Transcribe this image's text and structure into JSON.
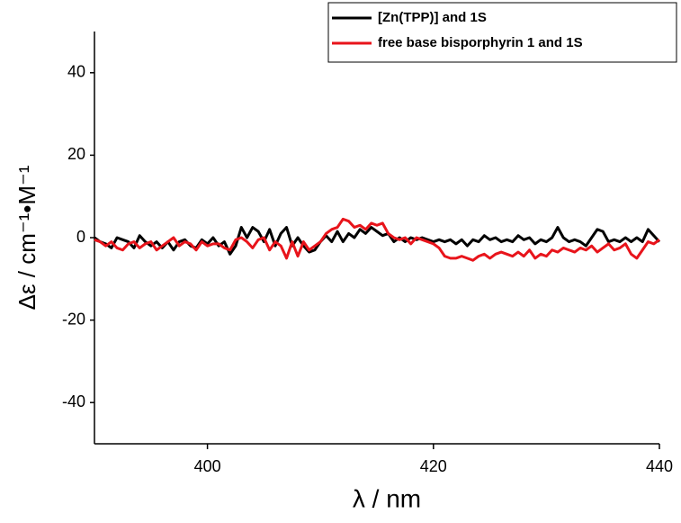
{
  "chart_data": {
    "type": "line",
    "xlabel": "λ / nm",
    "ylabel": "Δε / cm⁻¹•M⁻¹",
    "xlim": [
      390,
      440
    ],
    "xticks": [
      400,
      420,
      440
    ],
    "ylim": [
      -50,
      50
    ],
    "yticks": [
      -40,
      -20,
      0,
      20,
      40
    ],
    "legend": "upper right",
    "x": [
      390,
      390.5,
      391,
      391.5,
      392,
      392.5,
      393,
      393.5,
      394,
      394.5,
      395,
      395.5,
      396,
      396.5,
      397,
      397.5,
      398,
      398.5,
      399,
      399.5,
      400,
      400.5,
      401,
      401.5,
      402,
      402.5,
      403,
      403.5,
      404,
      404.5,
      405,
      405.5,
      406,
      406.5,
      407,
      407.5,
      408,
      408.5,
      409,
      409.5,
      410,
      410.5,
      411,
      411.5,
      412,
      412.5,
      413,
      413.5,
      414,
      414.5,
      415,
      415.5,
      416,
      416.5,
      417,
      417.5,
      418,
      418.5,
      419,
      419.5,
      420,
      420.5,
      421,
      421.5,
      422,
      422.5,
      423,
      423.5,
      424,
      424.5,
      425,
      425.5,
      426,
      426.5,
      427,
      427.5,
      428,
      428.5,
      429,
      429.5,
      430,
      430.5,
      431,
      431.5,
      432,
      432.5,
      433,
      433.5,
      434,
      434.5,
      435,
      435.5,
      436,
      436.5,
      437,
      437.5,
      438,
      438.5,
      439,
      439.5,
      440
    ],
    "series": [
      {
        "name": "[Zn(TPP)] and 1S",
        "color": "#000000",
        "values": [
          0,
          -1,
          -1.5,
          -2.5,
          0,
          -0.5,
          -1,
          -2.5,
          0.5,
          -1,
          -2,
          -1,
          -2.5,
          -1,
          -3,
          -1,
          -0.5,
          -2,
          -2.5,
          -0.5,
          -1.5,
          0,
          -2,
          -1,
          -4,
          -2,
          2.5,
          0,
          2.5,
          1.5,
          -1,
          2,
          -2,
          1,
          2.5,
          -2,
          0,
          -2,
          -3.5,
          -3,
          -1,
          0.5,
          -1,
          1.5,
          -1,
          1,
          0,
          2,
          1,
          2.5,
          1.5,
          0.5,
          1,
          -1,
          0,
          -1,
          0,
          -0.5,
          0,
          -0.5,
          -1,
          -0.5,
          -1,
          -0.5,
          -1.5,
          -0.5,
          -2,
          -0.5,
          -1,
          0.5,
          -0.5,
          0,
          -1,
          -0.5,
          -1,
          0.5,
          -0.5,
          0,
          -1.5,
          -0.5,
          -1,
          0,
          2.5,
          0,
          -1,
          -0.5,
          -1,
          -2,
          0,
          2,
          1.5,
          -1,
          -0.5,
          -1,
          0,
          -1,
          0,
          -1,
          2,
          0.5,
          -1
        ]
      },
      {
        "name": "free base bisporphyrin 1 and 1S",
        "color": "#e8141b",
        "values": [
          -0.5,
          -1,
          -2,
          -1,
          -2.5,
          -3,
          -1.5,
          -1,
          -2.5,
          -1.5,
          -1,
          -3,
          -2,
          -1,
          0,
          -2,
          -1,
          -1.5,
          -3,
          -1,
          -2,
          -1.5,
          -1.5,
          -2.5,
          -3,
          -0.5,
          0,
          -1,
          -2.5,
          -0.5,
          0,
          -3,
          -1,
          -2,
          -5,
          -1,
          -4.5,
          -1,
          -3,
          -2,
          -1,
          1,
          2,
          2.5,
          4.5,
          4,
          2.5,
          3,
          2,
          3.5,
          3,
          3.5,
          1,
          0,
          -0.5,
          0,
          -1.5,
          0,
          -0.5,
          -1,
          -1.5,
          -2.5,
          -4.5,
          -5,
          -5,
          -4.5,
          -5,
          -5.5,
          -4.5,
          -4,
          -5,
          -4,
          -3.5,
          -4,
          -4.5,
          -3.5,
          -4.5,
          -3,
          -5,
          -4,
          -4.5,
          -3,
          -3.5,
          -2.5,
          -3,
          -3.5,
          -2.5,
          -3,
          -2,
          -3.5,
          -2.5,
          -1.5,
          -3,
          -2.5,
          -1.5,
          -4,
          -5,
          -3,
          -1,
          -1.5,
          -0.5
        ]
      }
    ]
  }
}
